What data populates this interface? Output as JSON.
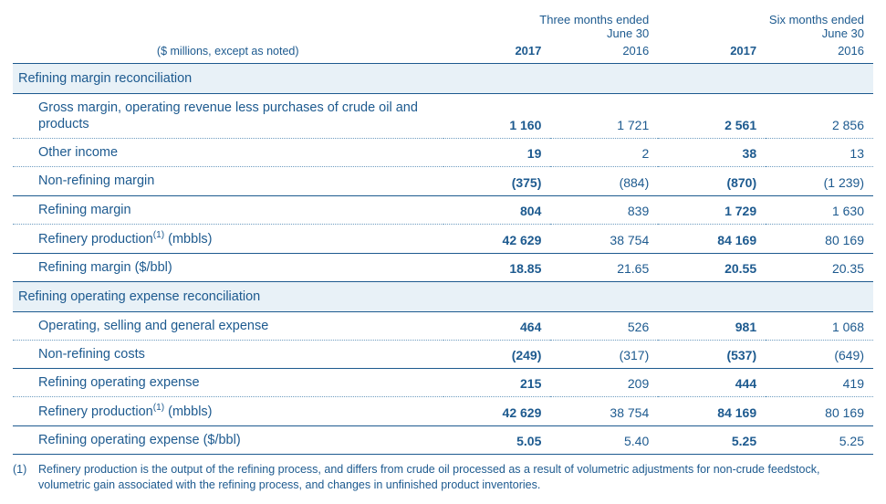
{
  "caption": "($ millions, except as noted)",
  "period_groups": [
    {
      "super": "Three months ended",
      "sub": "June 30"
    },
    {
      "super": "Six months ended",
      "sub": "June 30"
    }
  ],
  "years": [
    "2017",
    "2016",
    "2017",
    "2016"
  ],
  "bold_cols": [
    true,
    false,
    true,
    false
  ],
  "sections": [
    {
      "title": "Refining margin reconciliation",
      "rows": [
        {
          "label": "Gross margin, operating revenue less purchases of crude oil and products",
          "values": [
            "1 160",
            "1 721",
            "2 561",
            "2 856"
          ],
          "solid": false
        },
        {
          "label": "Other income",
          "values": [
            "19",
            "2",
            "38",
            "13"
          ],
          "solid": false
        },
        {
          "label": "Non-refining margin",
          "values": [
            "(375)",
            "(884)",
            "(870)",
            "(1 239)"
          ],
          "solid": true
        },
        {
          "label": "Refining margin",
          "values": [
            "804",
            "839",
            "1 729",
            "1 630"
          ],
          "solid": false
        },
        {
          "label_html": "Refinery production<sup>(1)</sup> (mbbls)",
          "values": [
            "42 629",
            "38 754",
            "84 169",
            "80 169"
          ],
          "solid": true
        },
        {
          "label": "Refining margin ($/bbl)",
          "values": [
            "18.85",
            "21.65",
            "20.55",
            "20.35"
          ],
          "solid": true
        }
      ]
    },
    {
      "title": "Refining operating expense reconciliation",
      "rows": [
        {
          "label": "Operating, selling and general expense",
          "values": [
            "464",
            "526",
            "981",
            "1 068"
          ],
          "solid": false
        },
        {
          "label": "Non-refining costs",
          "values": [
            "(249)",
            "(317)",
            "(537)",
            "(649)"
          ],
          "solid": true
        },
        {
          "label": "Refining operating expense",
          "values": [
            "215",
            "209",
            "444",
            "419"
          ],
          "solid": false
        },
        {
          "label_html": "Refinery production<sup>(1)</sup> (mbbls)",
          "values": [
            "42 629",
            "38 754",
            "84 169",
            "80 169"
          ],
          "solid": true
        },
        {
          "label": "Refining operating expense ($/bbl)",
          "values": [
            "5.05",
            "5.40",
            "5.25",
            "5.25"
          ],
          "solid": true
        }
      ]
    }
  ],
  "footnote": {
    "marker": "(1)",
    "text": "Refinery production is the output of the refining process, and differs from crude oil processed as a result of volumetric adjustments for non-crude feedstock, volumetric gain associated with the refining process, and changes in unfinished product inventories."
  },
  "colors": {
    "text": "#1d5a8f",
    "section_bg": "#e8f1f7",
    "rule": "#1d5a8f",
    "dotted": "#6e9cc0",
    "background": "#ffffff"
  }
}
